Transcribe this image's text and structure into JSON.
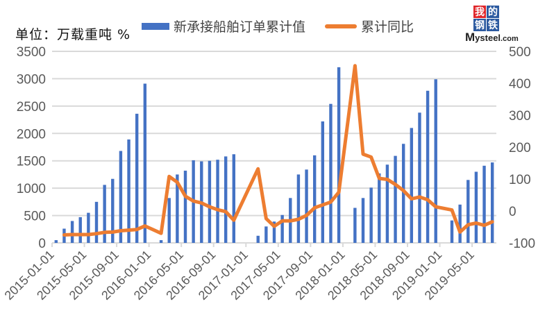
{
  "header": {
    "unit_label": "单位：万载重吨  %",
    "logo": {
      "cells": [
        "我",
        "的",
        "钢",
        "铁"
      ],
      "cell_colors": [
        "#e0262a",
        "#2c5aa0",
        "#2c5aa0",
        "#2c5aa0"
      ],
      "text_big": "M",
      "text_main": "ysteel",
      "text_small": ".com"
    }
  },
  "legend": {
    "bar_label": "新承接船舶订单累计值",
    "line_label": "累计同比"
  },
  "colors": {
    "bar": "#4472c4",
    "line": "#ed7d31",
    "grid": "#d9d9d9",
    "axis_text": "#595959"
  },
  "chart_data": {
    "type": "bar+line",
    "title": "",
    "xlabel": "",
    "ylabel": "单位：万载重吨",
    "y2label": "%",
    "ylim": [
      0,
      3500
    ],
    "y2lim": [
      -100,
      500
    ],
    "yticks": [
      0,
      500,
      1000,
      1500,
      2000,
      2500,
      3000,
      3500
    ],
    "y2ticks": [
      -100,
      0,
      100,
      200,
      300,
      400,
      500
    ],
    "grid": true,
    "legend_position": "top",
    "xtick_labels": [
      "2015-01-01",
      "2015-05-01",
      "2015-09-01",
      "2016-01-01",
      "2016-05-01",
      "2016-09-01",
      "2017-01-01",
      "2017-05-01",
      "2017-09-01",
      "2018-01-01",
      "2018-05-01",
      "2018-09-01",
      "2019-01-01",
      "2019-05-01"
    ],
    "x": [
      "2015-01",
      "2015-02",
      "2015-03",
      "2015-04",
      "2015-05",
      "2015-06",
      "2015-07",
      "2015-08",
      "2015-09",
      "2015-10",
      "2015-11",
      "2015-12",
      "2016-01",
      "2016-02",
      "2016-03",
      "2016-04",
      "2016-05",
      "2016-06",
      "2016-07",
      "2016-08",
      "2016-09",
      "2016-10",
      "2016-11",
      "2016-12",
      "2017-01",
      "2017-02",
      "2017-03",
      "2017-04",
      "2017-05",
      "2017-06",
      "2017-07",
      "2017-08",
      "2017-09",
      "2017-10",
      "2017-11",
      "2017-12",
      "2018-01",
      "2018-02",
      "2018-03",
      "2018-04",
      "2018-05",
      "2018-06",
      "2018-07",
      "2018-08",
      "2018-09",
      "2018-10",
      "2018-11",
      "2018-12",
      "2019-01",
      "2019-02",
      "2019-03",
      "2019-04",
      "2019-05",
      "2019-06",
      "2019-07"
    ],
    "series": [
      {
        "name": "新承接船舶订单累计值",
        "type": "bar",
        "axis": "left",
        "values": [
          50,
          260,
          400,
          470,
          550,
          750,
          1060,
          1170,
          1680,
          1890,
          2360,
          2910,
          null,
          50,
          820,
          1250,
          1320,
          1510,
          1490,
          1500,
          1520,
          1580,
          1620,
          null,
          null,
          130,
          300,
          390,
          510,
          820,
          1250,
          1340,
          1600,
          2220,
          2540,
          3210,
          null,
          640,
          820,
          1010,
          1270,
          1430,
          1590,
          1810,
          2100,
          2380,
          2780,
          2990,
          null,
          410,
          700,
          1150,
          1300,
          1410,
          1470
        ]
      },
      {
        "name": "累计同比",
        "type": "line",
        "axis": "right",
        "values": [
          null,
          -75,
          -74,
          -74,
          -74,
          -71,
          -67,
          -66,
          -62,
          -60,
          -58,
          -47,
          null,
          -70,
          108,
          90,
          46,
          31,
          25,
          13,
          4,
          -2,
          -29,
          null,
          null,
          132,
          -24,
          -48,
          -31,
          -31,
          -26,
          -14,
          10,
          19,
          28,
          59,
          null,
          455,
          178,
          169,
          102,
          99,
          83,
          64,
          38,
          44,
          35,
          13,
          null,
          3,
          -66,
          -43,
          -38,
          -45,
          -34
        ]
      }
    ]
  }
}
